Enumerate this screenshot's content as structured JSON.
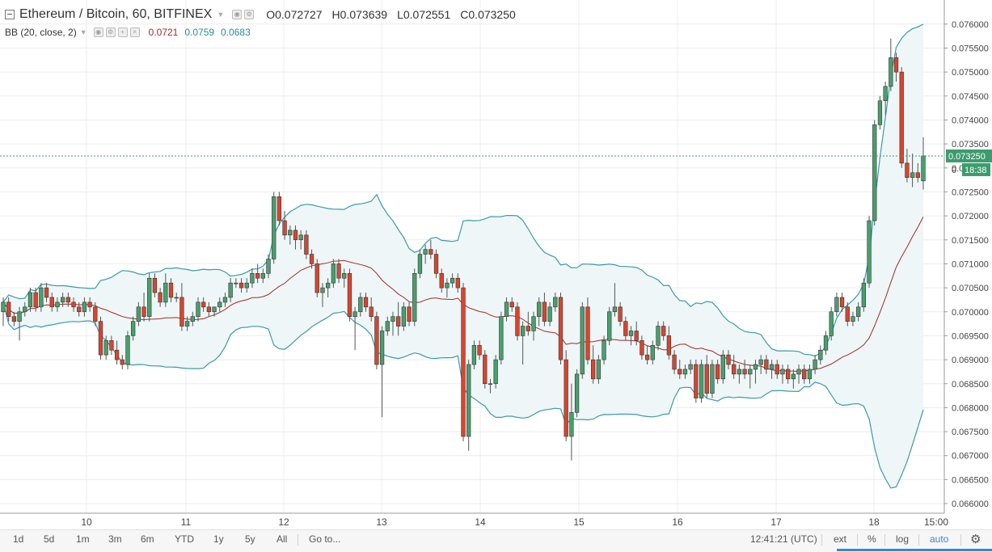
{
  "header": {
    "symbol": "Ethereum / Bitcoin, 60, BITFINEX",
    "ohlc": [
      {
        "key": "O",
        "value": "0.072727"
      },
      {
        "key": "H",
        "value": "0.073639"
      },
      {
        "key": "L",
        "value": "0.072551"
      },
      {
        "key": "C",
        "value": "0.073250"
      }
    ],
    "indicator": "BB (20, close, 2)",
    "bb_values": [
      "0.0721",
      "0.0759",
      "0.0683"
    ]
  },
  "price_label": "0.073250",
  "timer_label": "18:38",
  "timer_prefix": "0",
  "toolbar": {
    "ranges": [
      "1d",
      "5d",
      "1m",
      "3m",
      "6m",
      "YTD",
      "1y",
      "5y",
      "All"
    ],
    "goto": "Go to...",
    "time": "12:41:21 (UTC)",
    "ext": "ext",
    "percent": "%",
    "log": "log",
    "auto": "auto",
    "settings_icon": "gear-icon"
  },
  "colors": {
    "up": "#4a9f6e",
    "down": "#d8452f",
    "band": "#3a9ba8",
    "basis": "#a52a2a",
    "fill": "#eef6f7",
    "last": "#3d9b6e"
  },
  "chart_data": {
    "type": "candlestick",
    "title": "Ethereum / Bitcoin, 60, BITFINEX",
    "x_ticks": [
      "10",
      "11",
      "12",
      "13",
      "14",
      "15",
      "16",
      "17",
      "18",
      "15:00"
    ],
    "y_ticks": [
      "0.076000",
      "0.075500",
      "0.075000",
      "0.074500",
      "0.074000",
      "0.073500",
      "0.073000",
      "0.072500",
      "0.072000",
      "0.071500",
      "0.071000",
      "0.070500",
      "0.070000",
      "0.069500",
      "0.069000",
      "0.068500",
      "0.068000",
      "0.067500",
      "0.067000",
      "0.066500",
      "0.066000"
    ],
    "y_range": [
      0.0659,
      0.0763
    ],
    "last_price": 0.07325,
    "candles": [
      [
        0.07,
        0.0703,
        0.0697,
        0.0702
      ],
      [
        0.0702,
        0.0703,
        0.0698,
        0.0699
      ],
      [
        0.0699,
        0.07,
        0.0697,
        0.0698
      ],
      [
        0.0698,
        0.0701,
        0.0694,
        0.07
      ],
      [
        0.07,
        0.0702,
        0.0699,
        0.0701
      ],
      [
        0.0701,
        0.0705,
        0.07,
        0.0704
      ],
      [
        0.0704,
        0.0705,
        0.07,
        0.0701
      ],
      [
        0.0701,
        0.0706,
        0.07,
        0.0705
      ],
      [
        0.0705,
        0.0706,
        0.0702,
        0.0703
      ],
      [
        0.0703,
        0.0704,
        0.07,
        0.0701
      ],
      [
        0.0701,
        0.0703,
        0.07,
        0.0702
      ],
      [
        0.0702,
        0.0704,
        0.0701,
        0.0703
      ],
      [
        0.0703,
        0.0704,
        0.0701,
        0.0702
      ],
      [
        0.0702,
        0.0703,
        0.07,
        0.0701
      ],
      [
        0.0701,
        0.0702,
        0.0699,
        0.07
      ],
      [
        0.07,
        0.0703,
        0.0699,
        0.0702
      ],
      [
        0.0702,
        0.0703,
        0.07,
        0.0701
      ],
      [
        0.0701,
        0.0702,
        0.0697,
        0.0698
      ],
      [
        0.0698,
        0.0699,
        0.069,
        0.0691
      ],
      [
        0.0691,
        0.0695,
        0.069,
        0.0694
      ],
      [
        0.0694,
        0.0695,
        0.0691,
        0.0692
      ],
      [
        0.0692,
        0.0694,
        0.0689,
        0.069
      ],
      [
        0.069,
        0.0691,
        0.0688,
        0.0689
      ],
      [
        0.0689,
        0.0696,
        0.0688,
        0.0695
      ],
      [
        0.0695,
        0.0699,
        0.0694,
        0.0698
      ],
      [
        0.0698,
        0.0702,
        0.0697,
        0.0701
      ],
      [
        0.0701,
        0.0704,
        0.0698,
        0.0699
      ],
      [
        0.0699,
        0.0708,
        0.0698,
        0.0707
      ],
      [
        0.0707,
        0.0708,
        0.0703,
        0.0704
      ],
      [
        0.0704,
        0.0705,
        0.0701,
        0.0702
      ],
      [
        0.0702,
        0.0708,
        0.0701,
        0.0706
      ],
      [
        0.0706,
        0.0707,
        0.0702,
        0.0703
      ],
      [
        0.0703,
        0.0704,
        0.0702,
        0.0703
      ],
      [
        0.0703,
        0.0706,
        0.0696,
        0.0697
      ],
      [
        0.0697,
        0.0699,
        0.0696,
        0.0698
      ],
      [
        0.0698,
        0.07,
        0.0697,
        0.0699
      ],
      [
        0.0699,
        0.0703,
        0.0698,
        0.0702
      ],
      [
        0.0702,
        0.0703,
        0.07,
        0.0701
      ],
      [
        0.0701,
        0.0702,
        0.0699,
        0.07
      ],
      [
        0.07,
        0.0701,
        0.0699,
        0.0701
      ],
      [
        0.0701,
        0.0703,
        0.07,
        0.0702
      ],
      [
        0.0702,
        0.0704,
        0.0701,
        0.0703
      ],
      [
        0.0703,
        0.0707,
        0.0702,
        0.0706
      ],
      [
        0.0706,
        0.0707,
        0.0705,
        0.0706
      ],
      [
        0.0706,
        0.0707,
        0.0704,
        0.0705
      ],
      [
        0.0705,
        0.0707,
        0.0704,
        0.0706
      ],
      [
        0.0706,
        0.0709,
        0.0705,
        0.0708
      ],
      [
        0.0708,
        0.071,
        0.0706,
        0.0707
      ],
      [
        0.0707,
        0.0709,
        0.0706,
        0.0708
      ],
      [
        0.0708,
        0.0712,
        0.0707,
        0.0711
      ],
      [
        0.0711,
        0.0725,
        0.071,
        0.0724
      ],
      [
        0.0724,
        0.0725,
        0.0718,
        0.0719
      ],
      [
        0.0719,
        0.0721,
        0.0715,
        0.0716
      ],
      [
        0.0716,
        0.0718,
        0.0714,
        0.0717
      ],
      [
        0.0717,
        0.0718,
        0.0713,
        0.0715
      ],
      [
        0.0715,
        0.0717,
        0.0713,
        0.0716
      ],
      [
        0.0716,
        0.0717,
        0.0711,
        0.0712
      ],
      [
        0.0712,
        0.0713,
        0.0709,
        0.071
      ],
      [
        0.071,
        0.0711,
        0.0703,
        0.0704
      ],
      [
        0.0704,
        0.0706,
        0.0701,
        0.0705
      ],
      [
        0.0705,
        0.0707,
        0.0703,
        0.0706
      ],
      [
        0.0706,
        0.0711,
        0.0705,
        0.071
      ],
      [
        0.071,
        0.0711,
        0.0706,
        0.0707
      ],
      [
        0.0707,
        0.0709,
        0.0705,
        0.0708
      ],
      [
        0.0708,
        0.0709,
        0.0698,
        0.0699
      ],
      [
        0.0699,
        0.0701,
        0.0692,
        0.07
      ],
      [
        0.07,
        0.0704,
        0.0699,
        0.0703
      ],
      [
        0.0703,
        0.0704,
        0.07,
        0.0701
      ],
      [
        0.0701,
        0.0703,
        0.0698,
        0.0699
      ],
      [
        0.0699,
        0.07,
        0.0688,
        0.0689
      ],
      [
        0.0689,
        0.0697,
        0.0678,
        0.0696
      ],
      [
        0.0696,
        0.0699,
        0.0695,
        0.0698
      ],
      [
        0.0698,
        0.07,
        0.0695,
        0.0699
      ],
      [
        0.0699,
        0.0702,
        0.0695,
        0.0697
      ],
      [
        0.0697,
        0.0702,
        0.0696,
        0.0701
      ],
      [
        0.0701,
        0.0702,
        0.0697,
        0.0698
      ],
      [
        0.0698,
        0.0709,
        0.0697,
        0.0708
      ],
      [
        0.0708,
        0.0713,
        0.0707,
        0.0712
      ],
      [
        0.0712,
        0.0714,
        0.071,
        0.0713
      ],
      [
        0.0713,
        0.0715,
        0.0711,
        0.0712
      ],
      [
        0.0712,
        0.0713,
        0.0707,
        0.0708
      ],
      [
        0.0708,
        0.0709,
        0.0704,
        0.0705
      ],
      [
        0.0705,
        0.0707,
        0.0703,
        0.0706
      ],
      [
        0.0706,
        0.0708,
        0.0705,
        0.0707
      ],
      [
        0.0707,
        0.0708,
        0.0704,
        0.0705
      ],
      [
        0.0705,
        0.0706,
        0.0673,
        0.0674
      ],
      [
        0.0674,
        0.069,
        0.0671,
        0.0689
      ],
      [
        0.0689,
        0.0694,
        0.0688,
        0.0693
      ],
      [
        0.0693,
        0.0694,
        0.069,
        0.0691
      ],
      [
        0.0691,
        0.0692,
        0.0684,
        0.0685
      ],
      [
        0.0685,
        0.0686,
        0.0683,
        0.0685
      ],
      [
        0.0685,
        0.0691,
        0.0684,
        0.069
      ],
      [
        0.069,
        0.07,
        0.0689,
        0.0699
      ],
      [
        0.0699,
        0.0703,
        0.0698,
        0.0702
      ],
      [
        0.0702,
        0.0703,
        0.07,
        0.0701
      ],
      [
        0.0701,
        0.0702,
        0.0694,
        0.0695
      ],
      [
        0.0695,
        0.0698,
        0.0689,
        0.0697
      ],
      [
        0.0697,
        0.07,
        0.0695,
        0.0696
      ],
      [
        0.0696,
        0.07,
        0.0694,
        0.0699
      ],
      [
        0.0699,
        0.0703,
        0.0697,
        0.0702
      ],
      [
        0.0702,
        0.0704,
        0.0697,
        0.0698
      ],
      [
        0.0698,
        0.0702,
        0.0697,
        0.0701
      ],
      [
        0.0701,
        0.0704,
        0.07,
        0.0703
      ],
      [
        0.0703,
        0.0704,
        0.0689,
        0.069
      ],
      [
        0.069,
        0.0692,
        0.0673,
        0.0674
      ],
      [
        0.0674,
        0.0685,
        0.0669,
        0.0679
      ],
      [
        0.0679,
        0.0688,
        0.0678,
        0.0687
      ],
      [
        0.0687,
        0.0702,
        0.0686,
        0.0701
      ],
      [
        0.0701,
        0.0703,
        0.0689,
        0.069
      ],
      [
        0.069,
        0.0693,
        0.0685,
        0.0686
      ],
      [
        0.0686,
        0.0691,
        0.0685,
        0.069
      ],
      [
        0.069,
        0.0695,
        0.0689,
        0.0694
      ],
      [
        0.0694,
        0.0701,
        0.0693,
        0.07
      ],
      [
        0.07,
        0.0706,
        0.0699,
        0.0701
      ],
      [
        0.0701,
        0.0702,
        0.0697,
        0.0698
      ],
      [
        0.0698,
        0.0699,
        0.0694,
        0.0695
      ],
      [
        0.0695,
        0.0697,
        0.0693,
        0.0696
      ],
      [
        0.0696,
        0.0698,
        0.0693,
        0.0694
      ],
      [
        0.0694,
        0.0695,
        0.069,
        0.0691
      ],
      [
        0.0691,
        0.0693,
        0.0689,
        0.069
      ],
      [
        0.069,
        0.0694,
        0.0689,
        0.0693
      ],
      [
        0.0693,
        0.0698,
        0.0692,
        0.0697
      ],
      [
        0.0697,
        0.0698,
        0.0694,
        0.0695
      ],
      [
        0.0695,
        0.0697,
        0.069,
        0.0691
      ],
      [
        0.0691,
        0.0692,
        0.0687,
        0.0688
      ],
      [
        0.0688,
        0.069,
        0.0686,
        0.0687
      ],
      [
        0.0687,
        0.0689,
        0.0686,
        0.0688
      ],
      [
        0.0688,
        0.069,
        0.0687,
        0.0689
      ],
      [
        0.0689,
        0.069,
        0.0681,
        0.0682
      ],
      [
        0.0682,
        0.069,
        0.0681,
        0.0689
      ],
      [
        0.0689,
        0.0691,
        0.0682,
        0.0683
      ],
      [
        0.0683,
        0.069,
        0.0682,
        0.0689
      ],
      [
        0.0689,
        0.069,
        0.0685,
        0.0686
      ],
      [
        0.0686,
        0.0692,
        0.0685,
        0.0691
      ],
      [
        0.0691,
        0.0692,
        0.0688,
        0.0689
      ],
      [
        0.0689,
        0.0691,
        0.0686,
        0.0687
      ],
      [
        0.0687,
        0.0689,
        0.0685,
        0.0688
      ],
      [
        0.0688,
        0.069,
        0.0686,
        0.0687
      ],
      [
        0.0687,
        0.0689,
        0.0684,
        0.0688
      ],
      [
        0.0688,
        0.069,
        0.0685,
        0.0689
      ],
      [
        0.0689,
        0.0691,
        0.0687,
        0.069
      ],
      [
        0.069,
        0.0691,
        0.0687,
        0.0688
      ],
      [
        0.0688,
        0.069,
        0.0686,
        0.0689
      ],
      [
        0.0689,
        0.069,
        0.0686,
        0.0687
      ],
      [
        0.0687,
        0.0689,
        0.0685,
        0.0688
      ],
      [
        0.0688,
        0.0689,
        0.0685,
        0.0686
      ],
      [
        0.0686,
        0.0688,
        0.0684,
        0.0687
      ],
      [
        0.0687,
        0.0689,
        0.0685,
        0.0688
      ],
      [
        0.0688,
        0.0689,
        0.0685,
        0.0686
      ],
      [
        0.0686,
        0.0689,
        0.0685,
        0.0688
      ],
      [
        0.0688,
        0.0691,
        0.0687,
        0.069
      ],
      [
        0.069,
        0.0693,
        0.0689,
        0.0692
      ],
      [
        0.0692,
        0.0696,
        0.0691,
        0.0695
      ],
      [
        0.0695,
        0.0701,
        0.0694,
        0.07
      ],
      [
        0.07,
        0.0704,
        0.0699,
        0.0703
      ],
      [
        0.0703,
        0.0704,
        0.07,
        0.0701
      ],
      [
        0.0701,
        0.0702,
        0.0697,
        0.0698
      ],
      [
        0.0698,
        0.07,
        0.0697,
        0.0699
      ],
      [
        0.0699,
        0.0702,
        0.0698,
        0.0701
      ],
      [
        0.0701,
        0.0707,
        0.07,
        0.0706
      ],
      [
        0.0706,
        0.072,
        0.0705,
        0.0719
      ],
      [
        0.0719,
        0.074,
        0.0718,
        0.0739
      ],
      [
        0.0739,
        0.0745,
        0.0738,
        0.0744
      ],
      [
        0.0744,
        0.0748,
        0.0741,
        0.0747
      ],
      [
        0.0747,
        0.0757,
        0.0746,
        0.0753
      ],
      [
        0.0753,
        0.0754,
        0.0748,
        0.075
      ],
      [
        0.075,
        0.0751,
        0.073,
        0.0731
      ],
      [
        0.0731,
        0.0734,
        0.0727,
        0.0728
      ],
      [
        0.0728,
        0.0733,
        0.0726,
        0.0729
      ],
      [
        0.0729,
        0.0731,
        0.0727,
        0.0728
      ],
      [
        0.07273,
        0.07364,
        0.07255,
        0.07325
      ]
    ]
  }
}
